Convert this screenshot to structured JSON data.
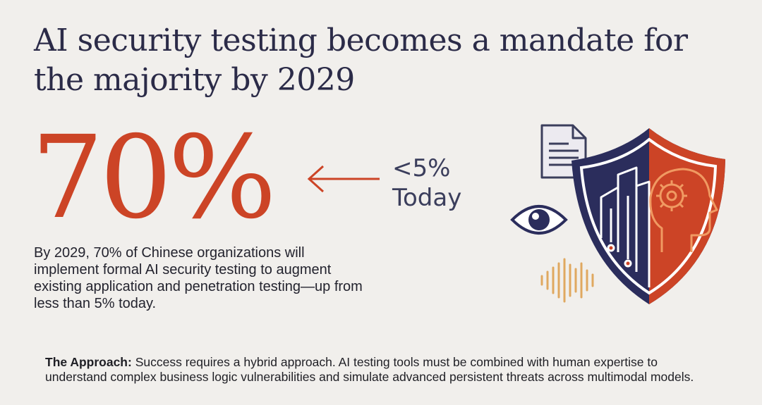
{
  "headline": {
    "line1": "AI security testing becomes a mandate for",
    "line2": "the majority by 2029"
  },
  "stat": {
    "value": "70%",
    "comparison_value": "<5%",
    "comparison_label": "Today"
  },
  "description": "By 2029, 70% of Chinese organizations will implement formal AI security testing to augment existing application and penetration testing—up from less than 5% today.",
  "approach": {
    "label": "The Approach:",
    "text": " Success requires a hybrid approach. AI testing tools must be combined with human expertise to understand complex business logic vulnerabilities and simulate advanced persistent threats across multimodal models."
  },
  "icons": [
    "arrow-left-icon",
    "document-icon",
    "eye-icon",
    "sound-wave-icon",
    "shield-icon",
    "city-buildings-icon",
    "gear-head-icon"
  ],
  "colors": {
    "accent": "#cc4426",
    "navy": "#2b2d5c",
    "text": "#2b2b48",
    "background": "#f1efec",
    "wave": "#e0a860"
  }
}
